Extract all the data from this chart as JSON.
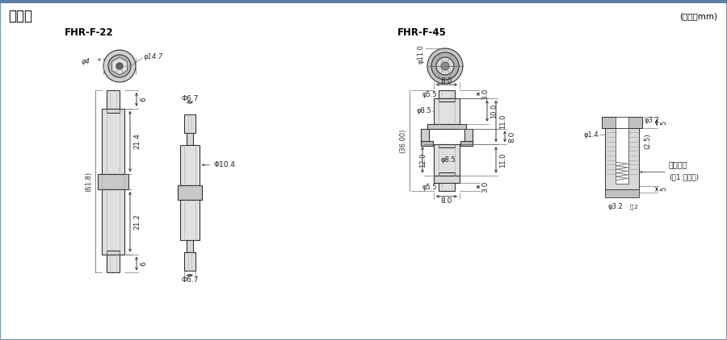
{
  "title": "尺寸圖",
  "unit": "(單位：mm)",
  "bg_color": "#f5f7fa",
  "header_color": "#5a7fa8",
  "border_color": "#5a7fa8",
  "line_color": "#333333",
  "label_fhr22": "FHR-F-22",
  "label_fhr45": "FHR-F-45",
  "fuse_label": "保險絲管",
  "note_label": "(註1:不附加)"
}
